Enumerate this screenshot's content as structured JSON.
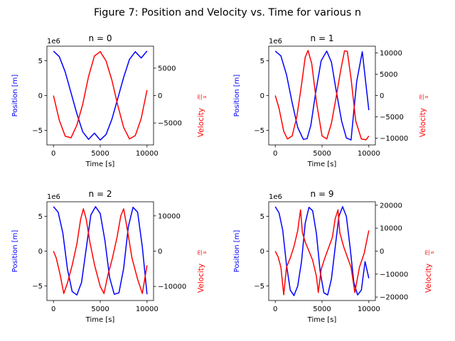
{
  "figure": {
    "title": "Figure 7: Position and Velocity vs. Time for various n"
  },
  "colors": {
    "position": "#0000ff",
    "velocity": "#ff0000",
    "axis": "#000000",
    "background": "#ffffff"
  },
  "chart_data": [
    {
      "type": "line",
      "title": "n = 0",
      "n": 0,
      "xlabel": "Time [s]",
      "ylabel_left": "Position [m]",
      "ylabel_right_prefix": "Velocity ",
      "ylabel_right_num": "m",
      "ylabel_right_den": "s",
      "offset_text": "1e6",
      "xlim": [
        -700,
        10700
      ],
      "ylim_left": [
        -7.1,
        7.1
      ],
      "ylim_right": [
        -9000,
        9000
      ],
      "xticks": [
        0,
        5000,
        10000
      ],
      "xticklabels": [
        "0",
        "5000",
        "10000"
      ],
      "yticks_left": [
        -5,
        0,
        5
      ],
      "yticklabels_left": [
        "−5",
        "0",
        "5"
      ],
      "yticks_right": [
        -5000,
        0,
        5000
      ],
      "yticklabels_right": [
        "−5000",
        "0",
        "5000"
      ],
      "series": [
        {
          "axis": "left",
          "x": [
            0,
            625,
            1250,
            1875,
            2500,
            3125,
            3750,
            4375,
            5000,
            5625,
            6250,
            6875,
            7500,
            8125,
            8750,
            9375,
            10000
          ],
          "y": [
            6.4,
            5.6,
            3.4,
            0.4,
            -2.6,
            -5.2,
            -6.3,
            -5.4,
            -6.4,
            -5.6,
            -3.4,
            -0.4,
            2.6,
            5.2,
            6.3,
            5.4,
            6.4
          ]
        },
        {
          "axis": "right",
          "x": [
            0,
            625,
            1250,
            1875,
            2500,
            3125,
            3750,
            4375,
            5000,
            5625,
            6250,
            6875,
            7500,
            8125,
            8750,
            9375,
            10000
          ],
          "y": [
            0,
            -4500,
            -7400,
            -7700,
            -5400,
            -1600,
            3500,
            7200,
            8000,
            6300,
            2800,
            -1800,
            -5800,
            -7900,
            -7300,
            -4200,
            1000
          ]
        }
      ]
    },
    {
      "type": "line",
      "title": "n = 1",
      "n": 1,
      "xlabel": "Time [s]",
      "ylabel_left": "Position [m]",
      "ylabel_right_prefix": "Velocity ",
      "ylabel_right_num": "m",
      "ylabel_right_den": "s",
      "offset_text": "1e6",
      "xlim": [
        -700,
        10700
      ],
      "ylim_left": [
        -7.1,
        7.1
      ],
      "ylim_right": [
        -11600,
        11600
      ],
      "xticks": [
        0,
        5000,
        10000
      ],
      "xticklabels": [
        "0",
        "5000",
        "10000"
      ],
      "yticks_left": [
        -5,
        0,
        5
      ],
      "yticklabels_left": [
        "−5",
        "0",
        "5"
      ],
      "yticks_right": [
        -10000,
        -5000,
        0,
        5000,
        10000
      ],
      "yticklabels_right": [
        "−10000",
        "−5000",
        "0",
        "5000",
        "10000"
      ],
      "series": [
        {
          "axis": "left",
          "x": [
            0,
            600,
            1200,
            1800,
            2400,
            3000,
            3400,
            3800,
            4300,
            4900,
            5500,
            6000,
            6500,
            7100,
            7600,
            8100,
            8700,
            9300,
            10000
          ],
          "y": [
            6.4,
            5.7,
            3.0,
            -1.0,
            -4.6,
            -6.3,
            -6.2,
            -4.3,
            0.3,
            5.0,
            6.4,
            4.8,
            0.8,
            -3.7,
            -6.1,
            -6.4,
            2.0,
            6.3,
            -2.1
          ]
        },
        {
          "axis": "right",
          "x": [
            0,
            400,
            900,
            1300,
            1800,
            2300,
            2800,
            3200,
            3500,
            3900,
            4400,
            5000,
            5500,
            6000,
            6500,
            7000,
            7400,
            7700,
            8100,
            8600,
            9200,
            9700,
            10000
          ],
          "y": [
            0,
            -3000,
            -8400,
            -10200,
            -9500,
            -5000,
            2500,
            9000,
            10600,
            7500,
            -1500,
            -9500,
            -10200,
            -6500,
            -500,
            6000,
            10500,
            10400,
            4000,
            -6000,
            -10200,
            -10400,
            -9500
          ]
        }
      ]
    },
    {
      "type": "line",
      "title": "n = 2",
      "n": 2,
      "xlabel": "Time [s]",
      "ylabel_left": "Position [m]",
      "ylabel_right_prefix": "Velocity ",
      "ylabel_right_num": "m",
      "ylabel_right_den": "s",
      "offset_text": "1e6",
      "xlim": [
        -700,
        10700
      ],
      "ylim_left": [
        -7.1,
        7.1
      ],
      "ylim_right": [
        -14000,
        14000
      ],
      "xticks": [
        0,
        5000,
        10000
      ],
      "xticklabels": [
        "0",
        "5000",
        "10000"
      ],
      "yticks_left": [
        -5,
        0,
        5
      ],
      "yticklabels_left": [
        "−5",
        "0",
        "5"
      ],
      "yticks_right": [
        -10000,
        0,
        10000
      ],
      "yticklabels_right": [
        "−10000",
        "0",
        "10000"
      ],
      "series": [
        {
          "axis": "left",
          "x": [
            0,
            500,
            1000,
            1500,
            2000,
            2500,
            3000,
            3500,
            4000,
            4500,
            5000,
            5500,
            6000,
            6500,
            7000,
            7500,
            8000,
            8500,
            9000,
            9500,
            10000
          ],
          "y": [
            6.4,
            5.6,
            2.6,
            -2.6,
            -5.8,
            -6.3,
            -4.5,
            0.4,
            5.2,
            6.4,
            5.4,
            1.5,
            -3.8,
            -6.2,
            -6.0,
            -2.5,
            3.5,
            6.3,
            5.6,
            0.6,
            -6.2
          ]
        },
        {
          "axis": "right",
          "x": [
            0,
            300,
            700,
            1100,
            1500,
            2000,
            2500,
            2900,
            3200,
            3500,
            3900,
            4400,
            5000,
            5400,
            5800,
            6300,
            6800,
            7200,
            7500,
            7900,
            8400,
            9000,
            9500,
            10000
          ],
          "y": [
            0,
            -2000,
            -6500,
            -12000,
            -9000,
            -4000,
            2000,
            9000,
            12000,
            9000,
            2500,
            -4000,
            -10000,
            -12000,
            -7000,
            -2000,
            4000,
            10000,
            12000,
            6000,
            -2000,
            -8000,
            -12000,
            -4000
          ]
        }
      ]
    },
    {
      "type": "line",
      "title": "n = 9",
      "n": 9,
      "xlabel": "Time [s]",
      "ylabel_left": "Position [m]",
      "ylabel_right_prefix": "Velocity ",
      "ylabel_right_num": "m",
      "ylabel_right_den": "s",
      "offset_text": "1e6",
      "xlim": [
        -700,
        10700
      ],
      "ylim_left": [
        -7.1,
        7.1
      ],
      "ylim_right": [
        -21500,
        21500
      ],
      "xticks": [
        0,
        5000,
        10000
      ],
      "xticklabels": [
        "0",
        "5000",
        "10000"
      ],
      "yticks_left": [
        -5,
        0,
        5
      ],
      "yticklabels_left": [
        "−5",
        "0",
        "5"
      ],
      "yticks_right": [
        -20000,
        -10000,
        0,
        10000,
        20000
      ],
      "yticklabels_right": [
        "−20000",
        "−10000",
        "0",
        "10000",
        "20000"
      ],
      "series": [
        {
          "axis": "left",
          "x": [
            0,
            400,
            800,
            1200,
            1600,
            2000,
            2400,
            2800,
            3200,
            3600,
            4000,
            4400,
            4800,
            5200,
            5600,
            6000,
            6400,
            6800,
            7200,
            7600,
            8000,
            8400,
            8800,
            9200,
            9600,
            10000
          ],
          "y": [
            6.4,
            5.5,
            3.0,
            -2.0,
            -5.6,
            -6.4,
            -5.0,
            -1.5,
            4.0,
            6.3,
            5.8,
            2.5,
            -3.0,
            -6.0,
            -6.3,
            -4.0,
            0.5,
            5.0,
            6.4,
            5.0,
            0.5,
            -4.5,
            -6.3,
            -5.6,
            -1.5,
            -3.9
          ]
        },
        {
          "axis": "right",
          "x": [
            0,
            300,
            600,
            900,
            1200,
            1600,
            2000,
            2400,
            2700,
            2900,
            3200,
            3600,
            4000,
            4400,
            4600,
            4900,
            5300,
            5700,
            6100,
            6400,
            6700,
            6900,
            7300,
            7700,
            8100,
            8500,
            9000,
            9500,
            10000
          ],
          "y": [
            0,
            -2500,
            -7000,
            -19000,
            -7000,
            -3000,
            2000,
            9000,
            18000,
            8000,
            4000,
            0,
            -4000,
            -11000,
            -18000,
            -8000,
            -3000,
            1500,
            6000,
            14000,
            18000,
            8000,
            2000,
            -2500,
            -7000,
            -18000,
            -7000,
            -1000,
            9000
          ]
        }
      ]
    }
  ]
}
